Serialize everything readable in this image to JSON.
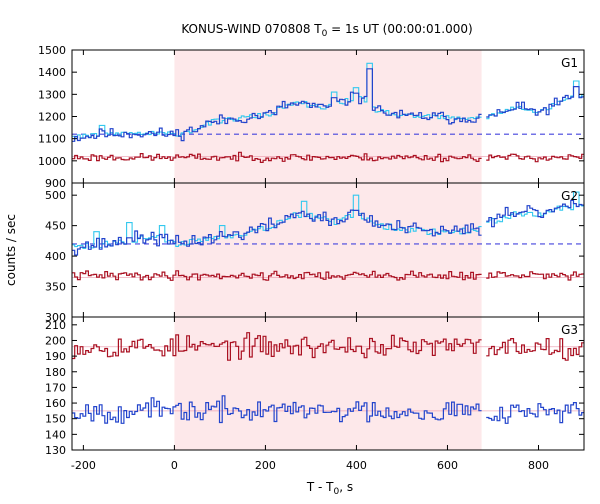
{
  "chart_data": {
    "type": "line",
    "title": {
      "prefix": "KONUS-WIND 070808 T",
      "sub": "0",
      "suffix": " = 1s UT (00:00:01.000)"
    },
    "xlabel": {
      "prefix": "T - T",
      "sub": "0",
      "suffix": ", s"
    },
    "ylabel": "counts / sec",
    "xlim": [
      -225,
      900
    ],
    "xticks": [
      -200,
      0,
      200,
      400,
      600,
      800
    ],
    "shaded_interval": [
      0,
      675
    ],
    "gap_interval": [
      675,
      685
    ],
    "colors": {
      "shade": "#fde8ea",
      "blue": "#2244cc",
      "light_blue": "#33c8ee",
      "red": "#aa1122",
      "bg_red": "#e88aa0",
      "bg_blue": "#4444dd"
    },
    "panels": [
      {
        "label": "G1",
        "ylim": [
          900,
          1500
        ],
        "yticks": [
          900,
          1000,
          1100,
          1200,
          1300,
          1400,
          1500
        ],
        "series": [
          {
            "role": "mid-energy counts",
            "style": "blue-step",
            "background": 1120,
            "anchors": [
              [
                -225,
                1105
              ],
              [
                -150,
                1120
              ],
              [
                -100,
                1125
              ],
              [
                0,
                1120
              ],
              [
                40,
                1140
              ],
              [
                80,
                1175
              ],
              [
                150,
                1195
              ],
              [
                210,
                1210
              ],
              [
                240,
                1250
              ],
              [
                280,
                1260
              ],
              [
                320,
                1235
              ],
              [
                360,
                1260
              ],
              [
                400,
                1290
              ],
              [
                440,
                1230
              ],
              [
                500,
                1200
              ],
              [
                560,
                1200
              ],
              [
                620,
                1190
              ],
              [
                675,
                1200
              ],
              [
                690,
                1200
              ],
              [
                750,
                1240
              ],
              [
                800,
                1220
              ],
              [
                850,
                1270
              ],
              [
                880,
                1290
              ],
              [
                900,
                1300
              ]
            ],
            "spikes": [
              [
                -160,
                1160
              ],
              [
                350,
                1310
              ],
              [
                395,
                1330
              ],
              [
                425,
                1440
              ],
              [
                880,
                1360
              ]
            ],
            "noise": 22,
            "seed": 11
          },
          {
            "role": "low-energy counts",
            "style": "red-step",
            "background": 1020,
            "anchors": [
              [
                -225,
                1015
              ],
              [
                900,
                1015
              ]
            ],
            "spikes": [],
            "noise": 14,
            "seed": 23
          }
        ]
      },
      {
        "label": "G2",
        "ylim": [
          300,
          520
        ],
        "yticks": [
          300,
          350,
          400,
          450,
          500
        ],
        "series": [
          {
            "role": "mid-energy counts",
            "style": "blue-step",
            "background": 420,
            "anchors": [
              [
                -225,
                415
              ],
              [
                -150,
                420
              ],
              [
                -50,
                432
              ],
              [
                0,
                420
              ],
              [
                80,
                430
              ],
              [
                150,
                438
              ],
              [
                220,
                452
              ],
              [
                260,
                470
              ],
              [
                300,
                465
              ],
              [
                350,
                455
              ],
              [
                400,
                470
              ],
              [
                450,
                450
              ],
              [
                500,
                445
              ],
              [
                560,
                440
              ],
              [
                620,
                440
              ],
              [
                675,
                445
              ],
              [
                690,
                455
              ],
              [
                750,
                470
              ],
              [
                800,
                470
              ],
              [
                850,
                480
              ],
              [
                900,
                480
              ]
            ],
            "spikes": [
              [
                -175,
                440
              ],
              [
                -100,
                455
              ],
              [
                -30,
                450
              ],
              [
                100,
                450
              ],
              [
                280,
                490
              ],
              [
                395,
                500
              ],
              [
                880,
                505
              ]
            ],
            "noise": 10,
            "seed": 37
          },
          {
            "role": "low-energy counts",
            "style": "red-step",
            "background": 365,
            "anchors": [
              [
                -225,
                368
              ],
              [
                900,
                368
              ]
            ],
            "spikes": [],
            "noise": 6,
            "seed": 41
          }
        ]
      },
      {
        "label": "G3",
        "ylim": [
          130,
          215
        ],
        "yticks": [
          130,
          140,
          150,
          160,
          170,
          180,
          190,
          200,
          210
        ],
        "series": [
          {
            "role": "high-energy counts (upper)",
            "style": "red-step",
            "background": 196,
            "anchors": [
              [
                -225,
                196
              ],
              [
                900,
                196
              ]
            ],
            "spikes": [],
            "noise": 6,
            "seed": 53
          },
          {
            "role": "high-energy counts (lower)",
            "style": "blue-step",
            "background": 155,
            "anchors": [
              [
                -225,
                155
              ],
              [
                900,
                155
              ]
            ],
            "spikes": [],
            "noise": 6,
            "seed": 67
          }
        ]
      }
    ]
  }
}
